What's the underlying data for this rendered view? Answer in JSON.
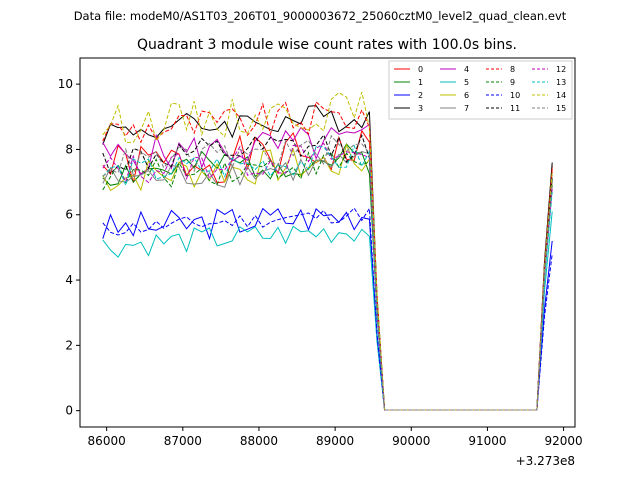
{
  "chart_data": {
    "type": "line",
    "suptitle": "Data file: modeM0/AS1T03_206T01_9000003672_25060cztM0_level2_quad_clean.evt",
    "title": "Quadrant 3 module wise count rates with 100.0s bins.",
    "xlabel": "",
    "ylabel": "",
    "x_offset_label": "+3.273e8",
    "xlim": [
      85650,
      92150
    ],
    "ylim": [
      -0.5,
      10.8
    ],
    "xticks": [
      86000,
      87000,
      88000,
      89000,
      90000,
      91000,
      92000
    ],
    "xtick_labels": [
      "86000",
      "87000",
      "88000",
      "89000",
      "90000",
      "91000",
      "92000"
    ],
    "yticks": [
      0,
      2,
      4,
      6,
      8,
      10
    ],
    "ytick_labels": [
      "0",
      "2",
      "4",
      "6",
      "8",
      "10"
    ],
    "grid": false,
    "legend_position": "top-right",
    "gap": {
      "start": 89600,
      "end": 91650,
      "value": 0.02
    },
    "series": [
      {
        "name": "0",
        "color": "#ff0000",
        "dash": "solid",
        "level": 7.7,
        "endpoint": 7.5,
        "seed": 1,
        "noise": 0.7
      },
      {
        "name": "1",
        "color": "#008000",
        "dash": "solid",
        "level": 7.5,
        "endpoint": 7.1,
        "seed": 2,
        "noise": 0.5
      },
      {
        "name": "2",
        "color": "#0000ff",
        "dash": "solid",
        "level": 5.8,
        "endpoint": 5.2,
        "seed": 3,
        "noise": 0.5
      },
      {
        "name": "3",
        "color": "#000000",
        "dash": "solid",
        "level": 8.8,
        "endpoint": 7.6,
        "seed": 4,
        "noise": 0.45
      },
      {
        "name": "4",
        "color": "#bf00bf",
        "dash": "solid",
        "level": 8.0,
        "endpoint": 7.3,
        "seed": 5,
        "noise": 0.6
      },
      {
        "name": "5",
        "color": "#00bfbf",
        "dash": "solid",
        "level": 5.3,
        "endpoint": 6.1,
        "seed": 6,
        "noise": 0.4
      },
      {
        "name": "6",
        "color": "#bfbf00",
        "dash": "solid",
        "level": 7.4,
        "endpoint": 7.0,
        "seed": 7,
        "noise": 0.55
      },
      {
        "name": "7",
        "color": "#808080",
        "dash": "solid",
        "level": 7.3,
        "endpoint": 6.9,
        "seed": 8,
        "noise": 0.45
      },
      {
        "name": "8",
        "color": "#ff0000",
        "dash": "dashed",
        "level": 8.8,
        "endpoint": 7.4,
        "seed": 9,
        "noise": 0.55
      },
      {
        "name": "9",
        "color": "#008000",
        "dash": "dashed",
        "level": 7.4,
        "endpoint": 6.9,
        "seed": 10,
        "noise": 0.45
      },
      {
        "name": "10",
        "color": "#0000ff",
        "dash": "dashed",
        "level": 5.8,
        "endpoint": 4.8,
        "seed": 11,
        "noise": 0.25
      },
      {
        "name": "11",
        "color": "#000000",
        "dash": "dashed",
        "level": 7.9,
        "endpoint": 7.2,
        "seed": 12,
        "noise": 0.5
      },
      {
        "name": "12",
        "color": "#bf00bf",
        "dash": "dashed",
        "level": 7.6,
        "endpoint": 6.8,
        "seed": 13,
        "noise": 0.5
      },
      {
        "name": "13",
        "color": "#00bfbf",
        "dash": "dashed",
        "level": 7.5,
        "endpoint": 6.7,
        "seed": 14,
        "noise": 0.45
      },
      {
        "name": "14",
        "color": "#bfbf00",
        "dash": "dashed",
        "level": 9.0,
        "endpoint": 7.3,
        "seed": 15,
        "noise": 0.6
      },
      {
        "name": "15",
        "color": "#808080",
        "dash": "dashed",
        "level": 7.8,
        "endpoint": 7.0,
        "seed": 16,
        "noise": 0.45
      }
    ]
  }
}
